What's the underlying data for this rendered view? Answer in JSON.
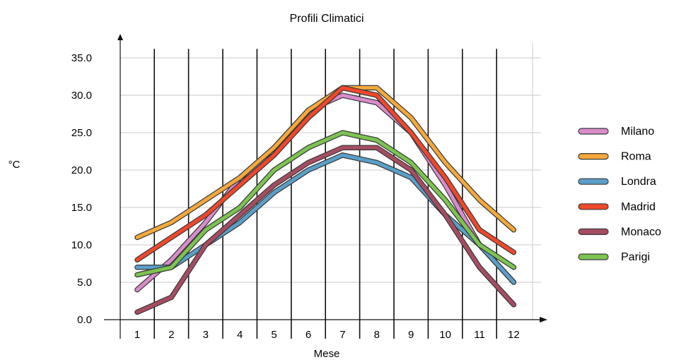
{
  "chart_data": {
    "type": "line",
    "title": "Profili Climatici",
    "xlabel": "Mese",
    "ylabel": "°C",
    "categories": [
      "1",
      "2",
      "3",
      "4",
      "5",
      "6",
      "7",
      "8",
      "9",
      "10",
      "11",
      "12"
    ],
    "ylim": [
      0,
      37
    ],
    "yticks": [
      "0.0",
      "5.0",
      "10.0",
      "15.0",
      "20.0",
      "25.0",
      "30.0",
      "35.0"
    ],
    "grid": true,
    "legend_position": "right",
    "series": [
      {
        "name": "Milano",
        "color": "#d98ccc",
        "values": [
          4,
          8,
          13,
          19,
          22,
          28,
          30,
          29,
          25,
          18,
          10,
          5
        ]
      },
      {
        "name": "Roma",
        "color": "#f5a93b",
        "values": [
          11,
          13,
          16,
          19,
          23,
          28,
          31,
          31,
          27,
          21,
          16,
          12
        ]
      },
      {
        "name": "Londra",
        "color": "#5a9fc9",
        "values": [
          7,
          7,
          10,
          13,
          17,
          20,
          22,
          21,
          19,
          14,
          10,
          5
        ]
      },
      {
        "name": "Madrid",
        "color": "#f0482a",
        "values": [
          8,
          11,
          14,
          18,
          22,
          27,
          31,
          30,
          25,
          19,
          12,
          9
        ]
      },
      {
        "name": "Monaco",
        "color": "#a84c62",
        "values": [
          1,
          3,
          10,
          14,
          18,
          21,
          23,
          23,
          20,
          14,
          7,
          2
        ]
      },
      {
        "name": "Parigi",
        "color": "#7cc450",
        "values": [
          6,
          7,
          12,
          15,
          20,
          23,
          25,
          24,
          21,
          16,
          10,
          7
        ]
      }
    ]
  }
}
